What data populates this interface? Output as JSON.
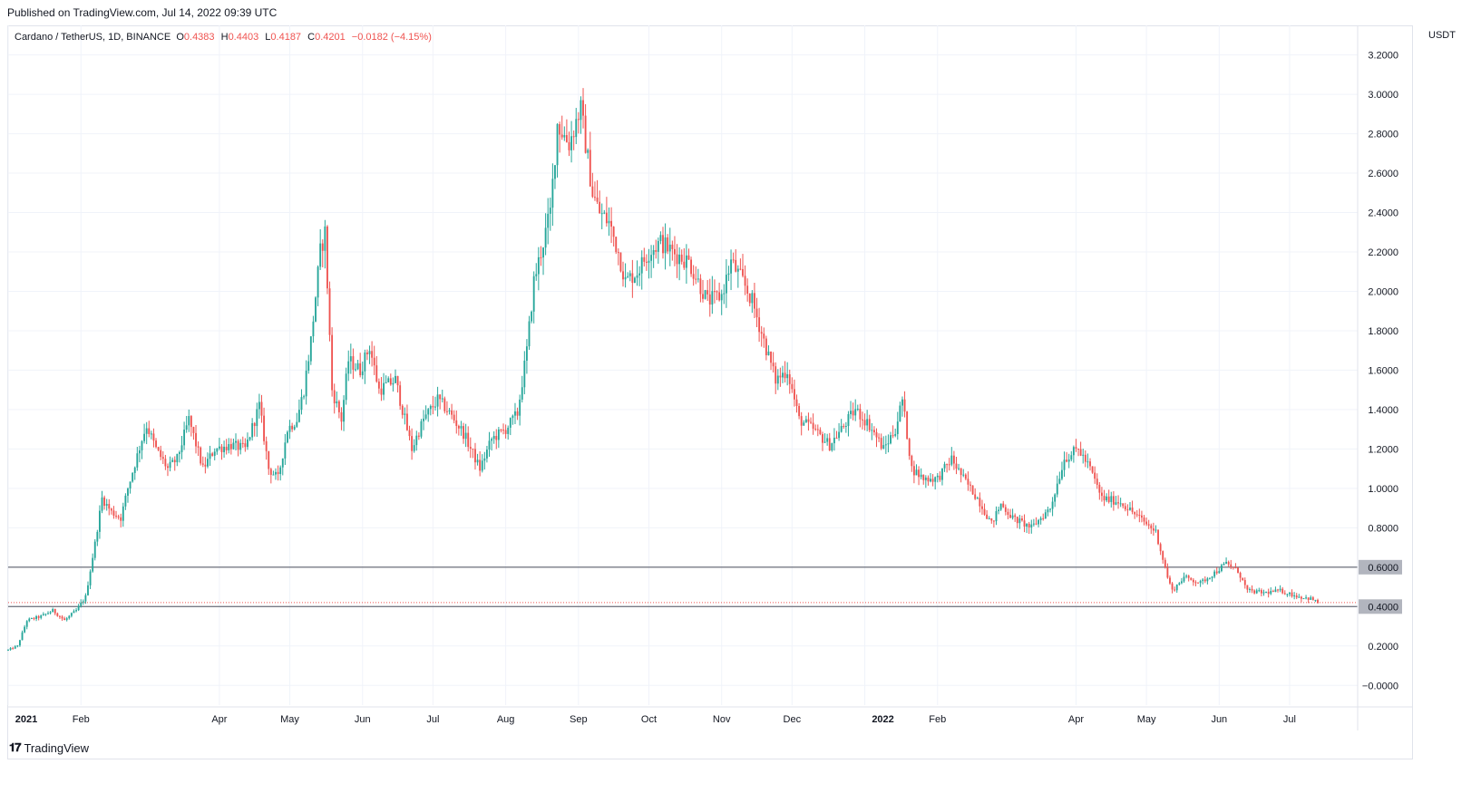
{
  "header": {
    "published": "Published on TradingView.com, Jul 14, 2022 09:39 UTC"
  },
  "legend": {
    "symbol": "Cardano / TetherUS, 1D, BINANCE",
    "open_label": "O",
    "open": "0.4383",
    "high_label": "H",
    "high": "0.4403",
    "low_label": "L",
    "low": "0.4187",
    "close_label": "C",
    "close": "0.4201",
    "change": "−0.0182 (−4.15%)"
  },
  "currency": "USDT",
  "footer": {
    "brand": "TradingView",
    "logo_glyph": "𝟏𝟕"
  },
  "colors": {
    "up": "#26a69a",
    "down": "#ef5350",
    "hline": "#787b86",
    "grid": "#f0f3fa"
  },
  "chart_data": {
    "type": "candlestick",
    "ylim": [
      -0.1,
      3.35
    ],
    "y_ticks": [
      3.2,
      3.0,
      2.8,
      2.6,
      2.4,
      2.2,
      2.0,
      1.8,
      1.6,
      1.4,
      1.2,
      1.0,
      0.8,
      0.6,
      0.4,
      0.2,
      0.0
    ],
    "y_tick_labels": [
      "3.2000",
      "3.0000",
      "2.8000",
      "2.6000",
      "2.4000",
      "2.2000",
      "2.0000",
      "1.8000",
      "1.6000",
      "1.4000",
      "1.2000",
      "1.0000",
      "0.8000",
      "0.6000",
      "0.4000",
      "0.2000",
      "−0.0000"
    ],
    "x_start": "2021-01-01",
    "x_end": "2022-07-30",
    "x_ticks": [
      {
        "date": "2021-01-01",
        "label": "2021",
        "bold": true
      },
      {
        "date": "2021-02-01",
        "label": "Feb"
      },
      {
        "date": "2021-04-01",
        "label": "Apr"
      },
      {
        "date": "2021-05-01",
        "label": "May"
      },
      {
        "date": "2021-06-01",
        "label": "Jun"
      },
      {
        "date": "2021-07-01",
        "label": "Jul"
      },
      {
        "date": "2021-08-01",
        "label": "Aug"
      },
      {
        "date": "2021-09-01",
        "label": "Sep"
      },
      {
        "date": "2021-10-01",
        "label": "Oct"
      },
      {
        "date": "2021-11-01",
        "label": "Nov"
      },
      {
        "date": "2021-12-01",
        "label": "Dec"
      },
      {
        "date": "2022-01-01",
        "label": "2022",
        "bold": true
      },
      {
        "date": "2022-02-01",
        "label": "Feb"
      },
      {
        "date": "2022-04-01",
        "label": "Apr"
      },
      {
        "date": "2022-05-01",
        "label": "May"
      },
      {
        "date": "2022-06-01",
        "label": "Jun"
      },
      {
        "date": "2022-07-01",
        "label": "Jul"
      }
    ],
    "horizontal_lines": [
      {
        "value": 0.6,
        "label": "0.6000"
      },
      {
        "value": 0.4,
        "label": "0.4000"
      }
    ],
    "last_price": 0.4201,
    "anchors": [
      [
        "2021-01-01",
        0.18
      ],
      [
        "2021-01-05",
        0.2
      ],
      [
        "2021-01-09",
        0.33
      ],
      [
        "2021-01-15",
        0.35
      ],
      [
        "2021-01-20",
        0.38
      ],
      [
        "2021-01-25",
        0.33
      ],
      [
        "2021-01-30",
        0.38
      ],
      [
        "2021-02-03",
        0.45
      ],
      [
        "2021-02-07",
        0.72
      ],
      [
        "2021-02-10",
        0.95
      ],
      [
        "2021-02-14",
        0.88
      ],
      [
        "2021-02-18",
        0.85
      ],
      [
        "2021-02-21",
        1.0
      ],
      [
        "2021-02-27",
        1.25
      ],
      [
        "2021-03-01",
        1.32
      ],
      [
        "2021-03-05",
        1.2
      ],
      [
        "2021-03-10",
        1.1
      ],
      [
        "2021-03-14",
        1.15
      ],
      [
        "2021-03-19",
        1.35
      ],
      [
        "2021-03-25",
        1.1
      ],
      [
        "2021-03-30",
        1.2
      ],
      [
        "2021-04-06",
        1.22
      ],
      [
        "2021-04-12",
        1.2
      ],
      [
        "2021-04-18",
        1.42
      ],
      [
        "2021-04-22",
        1.1
      ],
      [
        "2021-04-26",
        1.05
      ],
      [
        "2021-04-30",
        1.3
      ],
      [
        "2021-05-04",
        1.35
      ],
      [
        "2021-05-07",
        1.5
      ],
      [
        "2021-05-10",
        1.75
      ],
      [
        "2021-05-14",
        2.2
      ],
      [
        "2021-05-16",
        2.3
      ],
      [
        "2021-05-19",
        1.5
      ],
      [
        "2021-05-23",
        1.35
      ],
      [
        "2021-05-26",
        1.65
      ],
      [
        "2021-05-31",
        1.6
      ],
      [
        "2021-06-04",
        1.72
      ],
      [
        "2021-06-08",
        1.5
      ],
      [
        "2021-06-15",
        1.55
      ],
      [
        "2021-06-22",
        1.2
      ],
      [
        "2021-06-27",
        1.35
      ],
      [
        "2021-07-03",
        1.45
      ],
      [
        "2021-07-07",
        1.4
      ],
      [
        "2021-07-14",
        1.28
      ],
      [
        "2021-07-21",
        1.1
      ],
      [
        "2021-07-26",
        1.25
      ],
      [
        "2021-08-01",
        1.3
      ],
      [
        "2021-08-06",
        1.38
      ],
      [
        "2021-08-10",
        1.7
      ],
      [
        "2021-08-13",
        2.05
      ],
      [
        "2021-08-16",
        2.2
      ],
      [
        "2021-08-20",
        2.4
      ],
      [
        "2021-08-23",
        2.85
      ],
      [
        "2021-08-28",
        2.75
      ],
      [
        "2021-09-01",
        2.9
      ],
      [
        "2021-09-02",
        2.92
      ],
      [
        "2021-09-07",
        2.5
      ],
      [
        "2021-09-10",
        2.4
      ],
      [
        "2021-09-14",
        2.35
      ],
      [
        "2021-09-18",
        2.2
      ],
      [
        "2021-09-21",
        2.05
      ],
      [
        "2021-09-26",
        2.1
      ],
      [
        "2021-10-01",
        2.2
      ],
      [
        "2021-10-06",
        2.25
      ],
      [
        "2021-10-11",
        2.2
      ],
      [
        "2021-10-18",
        2.15
      ],
      [
        "2021-10-26",
        1.95
      ],
      [
        "2021-11-01",
        1.98
      ],
      [
        "2021-11-05",
        2.15
      ],
      [
        "2021-11-10",
        2.05
      ],
      [
        "2021-11-14",
        1.95
      ],
      [
        "2021-11-19",
        1.75
      ],
      [
        "2021-11-24",
        1.55
      ],
      [
        "2021-11-29",
        1.6
      ],
      [
        "2021-12-04",
        1.35
      ],
      [
        "2021-12-10",
        1.3
      ],
      [
        "2021-12-17",
        1.22
      ],
      [
        "2021-12-22",
        1.3
      ],
      [
        "2021-12-28",
        1.4
      ],
      [
        "2022-01-03",
        1.32
      ],
      [
        "2022-01-09",
        1.2
      ],
      [
        "2022-01-14",
        1.3
      ],
      [
        "2022-01-17",
        1.45
      ],
      [
        "2022-01-21",
        1.1
      ],
      [
        "2022-01-26",
        1.05
      ],
      [
        "2022-02-01",
        1.05
      ],
      [
        "2022-02-07",
        1.15
      ],
      [
        "2022-02-12",
        1.05
      ],
      [
        "2022-02-18",
        0.95
      ],
      [
        "2022-02-24",
        0.82
      ],
      [
        "2022-02-28",
        0.92
      ],
      [
        "2022-03-05",
        0.85
      ],
      [
        "2022-03-13",
        0.8
      ],
      [
        "2022-03-21",
        0.9
      ],
      [
        "2022-03-27",
        1.15
      ],
      [
        "2022-04-02",
        1.2
      ],
      [
        "2022-04-07",
        1.1
      ],
      [
        "2022-04-12",
        0.95
      ],
      [
        "2022-04-20",
        0.93
      ],
      [
        "2022-04-28",
        0.85
      ],
      [
        "2022-05-05",
        0.78
      ],
      [
        "2022-05-10",
        0.55
      ],
      [
        "2022-05-12",
        0.48
      ],
      [
        "2022-05-17",
        0.55
      ],
      [
        "2022-05-24",
        0.52
      ],
      [
        "2022-05-31",
        0.58
      ],
      [
        "2022-06-04",
        0.62
      ],
      [
        "2022-06-09",
        0.58
      ],
      [
        "2022-06-13",
        0.48
      ],
      [
        "2022-06-20",
        0.47
      ],
      [
        "2022-06-27",
        0.48
      ],
      [
        "2022-07-05",
        0.45
      ],
      [
        "2022-07-10",
        0.44
      ],
      [
        "2022-07-13",
        0.42
      ]
    ]
  }
}
